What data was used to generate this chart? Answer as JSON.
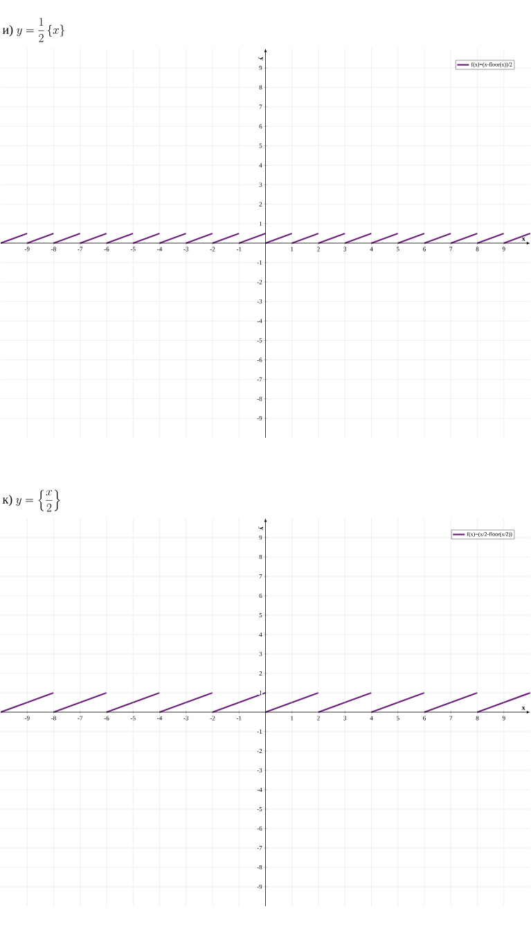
{
  "chart_data": [
    {
      "type": "line",
      "title": "\\text{и) }y=\\dfrac{1}{2}\\,\\{x\\}",
      "xlabel": "x",
      "ylabel": "y",
      "xlim": [
        -10,
        10
      ],
      "ylim": [
        -10,
        10
      ],
      "xticks": [
        -9,
        -8,
        -7,
        -6,
        -5,
        -4,
        -3,
        -2,
        -1,
        1,
        2,
        3,
        4,
        5,
        6,
        7,
        8,
        9
      ],
      "yticks": [
        -9,
        -8,
        -7,
        -6,
        -5,
        -4,
        -3,
        -2,
        -1,
        1,
        2,
        3,
        4,
        5,
        6,
        7,
        8,
        9
      ],
      "grid": true,
      "legend": "top right",
      "marker": "none",
      "line_style": "solid",
      "series": [
        {
          "name": "f(x)=(x-floor(x))/2",
          "color": "#6b1f7b",
          "x": [
            -10,
            -9
          ],
          "values": [
            0,
            0.5
          ]
        },
        {
          "color": "#6b1f7b",
          "x": [
            -9,
            -8
          ],
          "values": [
            0,
            0.5
          ]
        },
        {
          "color": "#6b1f7b",
          "x": [
            -8,
            -7
          ],
          "values": [
            0,
            0.5
          ]
        },
        {
          "color": "#6b1f7b",
          "x": [
            -7,
            -6
          ],
          "values": [
            0,
            0.5
          ]
        },
        {
          "color": "#6b1f7b",
          "x": [
            -6,
            -5
          ],
          "values": [
            0,
            0.5
          ]
        },
        {
          "color": "#6b1f7b",
          "x": [
            -5,
            -4
          ],
          "values": [
            0,
            0.5
          ]
        },
        {
          "color": "#6b1f7b",
          "x": [
            -4,
            -3
          ],
          "values": [
            0,
            0.5
          ]
        },
        {
          "color": "#6b1f7b",
          "x": [
            -3,
            -2
          ],
          "values": [
            0,
            0.5
          ]
        },
        {
          "color": "#6b1f7b",
          "x": [
            -2,
            -1
          ],
          "values": [
            0,
            0.5
          ]
        },
        {
          "color": "#6b1f7b",
          "x": [
            -1,
            0
          ],
          "values": [
            0,
            0.5
          ]
        },
        {
          "color": "#6b1f7b",
          "x": [
            0,
            1
          ],
          "values": [
            0,
            0.5
          ]
        },
        {
          "color": "#6b1f7b",
          "x": [
            1,
            2
          ],
          "values": [
            0,
            0.5
          ]
        },
        {
          "color": "#6b1f7b",
          "x": [
            2,
            3
          ],
          "values": [
            0,
            0.5
          ]
        },
        {
          "color": "#6b1f7b",
          "x": [
            3,
            4
          ],
          "values": [
            0,
            0.5
          ]
        },
        {
          "color": "#6b1f7b",
          "x": [
            4,
            5
          ],
          "values": [
            0,
            0.5
          ]
        },
        {
          "color": "#6b1f7b",
          "x": [
            5,
            6
          ],
          "values": [
            0,
            0.5
          ]
        },
        {
          "color": "#6b1f7b",
          "x": [
            6,
            7
          ],
          "values": [
            0,
            0.5
          ]
        },
        {
          "color": "#6b1f7b",
          "x": [
            7,
            8
          ],
          "values": [
            0,
            0.5
          ]
        },
        {
          "color": "#6b1f7b",
          "x": [
            8,
            9
          ],
          "values": [
            0,
            0.5
          ]
        },
        {
          "color": "#6b1f7b",
          "x": [
            9,
            10
          ],
          "values": [
            0,
            0.5
          ]
        }
      ]
    },
    {
      "type": "line",
      "title": "\\text{к) }y=\\left\\{\\dfrac{x}{2}\\right\\}",
      "xlabel": "x",
      "ylabel": "y",
      "xlim": [
        -10,
        10
      ],
      "ylim": [
        -10,
        10
      ],
      "xticks": [
        -9,
        -8,
        -7,
        -6,
        -5,
        -4,
        -3,
        -2,
        -1,
        1,
        2,
        3,
        4,
        5,
        6,
        7,
        8,
        9
      ],
      "yticks": [
        -9,
        -8,
        -7,
        -6,
        -5,
        -4,
        -3,
        -2,
        -1,
        1,
        2,
        3,
        4,
        5,
        6,
        7,
        8,
        9
      ],
      "grid": true,
      "legend": "top right",
      "marker": "none",
      "line_style": "solid",
      "series": [
        {
          "name": "f(x)=(x/2-floor(x/2))",
          "color": "#6b1f7b",
          "x": [
            -10,
            -8
          ],
          "values": [
            0,
            1
          ]
        },
        {
          "color": "#6b1f7b",
          "x": [
            -8,
            -6
          ],
          "values": [
            0,
            1
          ]
        },
        {
          "color": "#6b1f7b",
          "x": [
            -6,
            -4
          ],
          "values": [
            0,
            1
          ]
        },
        {
          "color": "#6b1f7b",
          "x": [
            -4,
            -2
          ],
          "values": [
            0,
            1
          ]
        },
        {
          "color": "#6b1f7b",
          "x": [
            -2,
            0
          ],
          "values": [
            0,
            1
          ]
        },
        {
          "color": "#6b1f7b",
          "x": [
            0,
            2
          ],
          "values": [
            0,
            1
          ]
        },
        {
          "color": "#6b1f7b",
          "x": [
            2,
            4
          ],
          "values": [
            0,
            1
          ]
        },
        {
          "color": "#6b1f7b",
          "x": [
            4,
            6
          ],
          "values": [
            0,
            1
          ]
        },
        {
          "color": "#6b1f7b",
          "x": [
            6,
            8
          ],
          "values": [
            0,
            1
          ]
        },
        {
          "color": "#6b1f7b",
          "x": [
            8,
            10
          ],
          "values": [
            0,
            1
          ]
        }
      ]
    }
  ]
}
